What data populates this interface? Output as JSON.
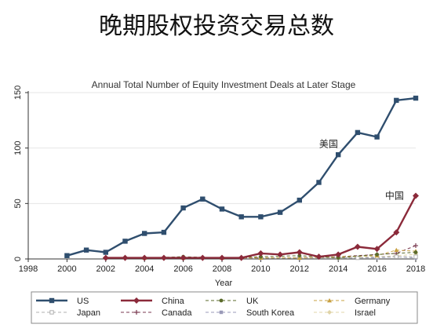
{
  "slide": {
    "title": "晚期股权投资交易总数"
  },
  "chart_data": {
    "type": "line",
    "title": "Annual Total Number of Equity Investment Deals at Later Stage",
    "xlabel": "Year",
    "ylabel": "",
    "xlim": [
      1998,
      2018
    ],
    "ylim": [
      0,
      150
    ],
    "x_ticks": [
      "1998",
      "2000",
      "2002",
      "2004",
      "2006",
      "2008",
      "2010",
      "2012",
      "2014",
      "2016",
      "2018"
    ],
    "y_ticks": [
      "0",
      "50",
      "100",
      "150"
    ],
    "annotations": [
      {
        "text": "美国",
        "x": 2013.5,
        "y": 101
      },
      {
        "text": "中国",
        "x": 2016.9,
        "y": 54
      }
    ],
    "legend_position": "bottom",
    "series": [
      {
        "name": "US",
        "color": "#2f4e6e",
        "marker": "square",
        "points": [
          [
            2000,
            3
          ],
          [
            2001,
            8
          ],
          [
            2002,
            6
          ],
          [
            2003,
            16
          ],
          [
            2004,
            23
          ],
          [
            2005,
            24
          ],
          [
            2006,
            46
          ],
          [
            2007,
            54
          ],
          [
            2008,
            45
          ],
          [
            2009,
            38
          ],
          [
            2010,
            38
          ],
          [
            2011,
            42
          ],
          [
            2012,
            53
          ],
          [
            2013,
            69
          ],
          [
            2014,
            94
          ],
          [
            2015,
            114
          ],
          [
            2016,
            110
          ],
          [
            2017,
            143
          ],
          [
            2018,
            145
          ]
        ]
      },
      {
        "name": "China",
        "color": "#8b2a3a",
        "marker": "diamond",
        "points": [
          [
            2002,
            1
          ],
          [
            2003,
            1
          ],
          [
            2004,
            1
          ],
          [
            2005,
            1
          ],
          [
            2006,
            1
          ],
          [
            2007,
            1
          ],
          [
            2008,
            1
          ],
          [
            2009,
            1
          ],
          [
            2010,
            5
          ],
          [
            2011,
            4
          ],
          [
            2012,
            6
          ],
          [
            2013,
            2
          ],
          [
            2014,
            4
          ],
          [
            2015,
            11
          ],
          [
            2016,
            9
          ],
          [
            2017,
            24
          ],
          [
            2018,
            57
          ]
        ]
      },
      {
        "name": "UK",
        "color": "#5a6a2a",
        "marker": "circle",
        "points": [
          [
            2002,
            1
          ],
          [
            2004,
            1
          ],
          [
            2006,
            2
          ],
          [
            2008,
            1
          ],
          [
            2010,
            2
          ],
          [
            2012,
            3
          ],
          [
            2014,
            1
          ],
          [
            2016,
            4
          ],
          [
            2018,
            6
          ]
        ]
      },
      {
        "name": "Germany",
        "color": "#c8a040",
        "marker": "triangle",
        "points": [
          [
            2004,
            1
          ],
          [
            2006,
            1
          ],
          [
            2008,
            1
          ],
          [
            2010,
            1
          ],
          [
            2012,
            1
          ],
          [
            2014,
            2
          ],
          [
            2016,
            3
          ],
          [
            2017,
            8
          ],
          [
            2018,
            7
          ]
        ]
      },
      {
        "name": "Japan",
        "color": "#b0b0b0",
        "marker": "open-square",
        "points": [
          [
            2010,
            1
          ],
          [
            2012,
            1
          ],
          [
            2014,
            1
          ],
          [
            2015,
            1
          ],
          [
            2016,
            2
          ],
          [
            2017,
            2
          ],
          [
            2018,
            2
          ]
        ]
      },
      {
        "name": "Canada",
        "color": "#7a3a50",
        "marker": "plus",
        "points": [
          [
            2008,
            1
          ],
          [
            2010,
            1
          ],
          [
            2012,
            1
          ],
          [
            2014,
            2
          ],
          [
            2016,
            4
          ],
          [
            2017,
            5
          ],
          [
            2018,
            12
          ]
        ]
      },
      {
        "name": "South Korea",
        "color": "#9a9ab8",
        "marker": "filled-square",
        "points": [
          [
            2014,
            1
          ],
          [
            2016,
            1
          ],
          [
            2017,
            2
          ],
          [
            2018,
            1
          ]
        ]
      },
      {
        "name": "Israel",
        "color": "#e0d4a8",
        "marker": "filled-diamond",
        "points": [
          [
            2012,
            1
          ],
          [
            2014,
            1
          ],
          [
            2016,
            2
          ],
          [
            2017,
            3
          ],
          [
            2018,
            4
          ]
        ]
      }
    ]
  }
}
